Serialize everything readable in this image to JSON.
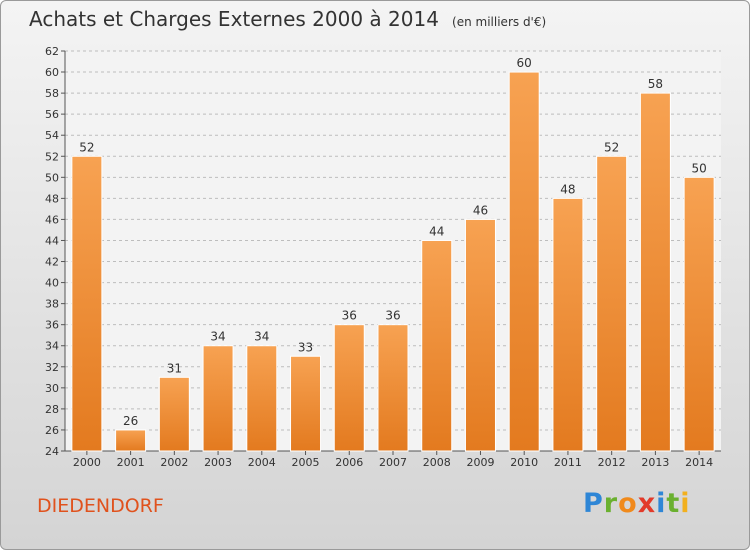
{
  "header": {
    "title": "Achats et Charges Externes 2000 à 2014",
    "unit": "(en milliers d'€)"
  },
  "commune": "DIEDENDORF",
  "logo": "Proxiti",
  "colors": {
    "bar_light": "#f7a252",
    "bar_dark": "#e37a1f",
    "commune_text": "#e0521d"
  },
  "chart_data": {
    "type": "bar",
    "title": "Achats et Charges Externes 2000 à 2014",
    "subtitle": "(en milliers d'€)",
    "categories": [
      "2000",
      "2001",
      "2002",
      "2003",
      "2004",
      "2005",
      "2006",
      "2007",
      "2008",
      "2009",
      "2010",
      "2011",
      "2012",
      "2013",
      "2014"
    ],
    "values": [
      52,
      26,
      31,
      34,
      34,
      33,
      36,
      36,
      44,
      46,
      60,
      48,
      52,
      58,
      50
    ],
    "ylim": [
      24,
      62
    ],
    "yticks": [
      24,
      26,
      28,
      30,
      32,
      34,
      36,
      38,
      40,
      42,
      44,
      46,
      48,
      50,
      52,
      54,
      56,
      58,
      60,
      62
    ],
    "grid": true,
    "data_labels": true
  }
}
